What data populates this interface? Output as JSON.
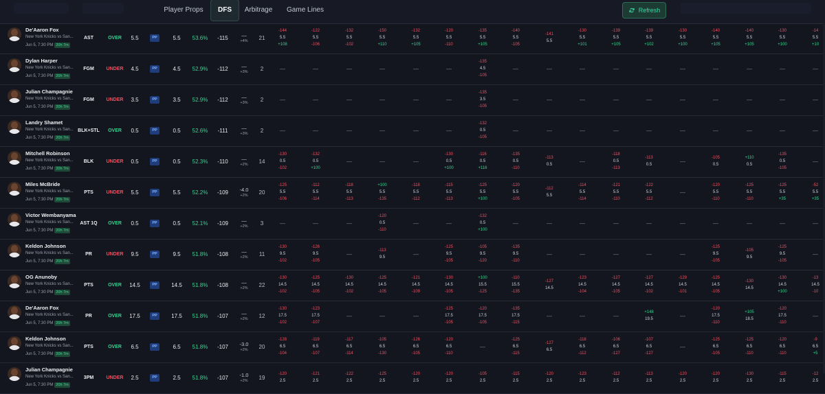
{
  "tabs": [
    {
      "label": "Player Props",
      "active": false
    },
    {
      "label": "DFS",
      "active": true
    },
    {
      "label": "Arbitrage",
      "active": false
    },
    {
      "label": "Game Lines",
      "active": false
    }
  ],
  "refresh_label": "Refresh",
  "rows": [
    {
      "name": "De'Aaron Fox",
      "match": "New York Knicks vs San...",
      "time": "Jun 5, 7:30 PM",
      "countdown": "20h 7m",
      "market": "AST",
      "side": "OVER",
      "line": "5.5",
      "book": "PP",
      "book_line": "5.5",
      "pct": "53.6%",
      "odds": "-115",
      "ev_a": "—",
      "ev_b": "+4%",
      "count": "21",
      "books": [
        [
          "-144",
          "5.5",
          "+108"
        ],
        [
          "-122",
          "5.5",
          "-106"
        ],
        [
          "-132",
          "5.5",
          "-102"
        ],
        [
          "-150",
          "5.5",
          "+110"
        ],
        [
          "-132",
          "5.5",
          "+105"
        ],
        [
          "-120",
          "5.5",
          "-110"
        ],
        [
          "-135",
          "5.5",
          "+105"
        ],
        [
          "-140",
          "5.5",
          "-105"
        ],
        [
          "-141",
          "5.5",
          ""
        ],
        [
          "-130",
          "5.5",
          "+101"
        ],
        [
          "-139",
          "5.5",
          "+105"
        ],
        [
          "-139",
          "5.5",
          "+102"
        ],
        [
          "-130",
          "5.5",
          "+100"
        ],
        [
          "-140",
          "5.5",
          "+105"
        ],
        [
          "-140",
          "5.5",
          "+105"
        ],
        [
          "-130",
          "5.5",
          "+100"
        ],
        [
          "-14",
          "5.5",
          "+10"
        ]
      ]
    },
    {
      "name": "Dylan Harper",
      "match": "New York Knicks vs San...",
      "time": "Jun 5, 7:30 PM",
      "countdown": "20h 7m",
      "market": "FGM",
      "side": "UNDER",
      "line": "4.5",
      "book": "PP",
      "book_line": "4.5",
      "pct": "52.9%",
      "odds": "-112",
      "ev_a": "—",
      "ev_b": "+3%",
      "count": "2",
      "books": [
        [],
        [],
        [],
        [],
        [],
        [],
        [
          "-135",
          "4.5",
          "-105"
        ],
        [],
        [],
        [],
        [],
        [],
        [],
        [],
        [],
        [],
        []
      ]
    },
    {
      "name": "Julian Champagnie",
      "match": "New York Knicks vs San...",
      "time": "Jun 5, 7:30 PM",
      "countdown": "20h 7m",
      "market": "FGM",
      "side": "UNDER",
      "line": "3.5",
      "book": "PP",
      "book_line": "3.5",
      "pct": "52.9%",
      "odds": "-112",
      "ev_a": "—",
      "ev_b": "+3%",
      "count": "2",
      "books": [
        [],
        [],
        [],
        [],
        [],
        [],
        [
          "-135",
          "3.5",
          "-105"
        ],
        [],
        [],
        [],
        [],
        [],
        [],
        [],
        [],
        [],
        []
      ]
    },
    {
      "name": "Landry Shamet",
      "match": "New York Knicks vs San...",
      "time": "Jun 5, 7:30 PM",
      "countdown": "20h 7m",
      "market": "BLK+STL",
      "side": "OVER",
      "line": "0.5",
      "book": "PP",
      "book_line": "0.5",
      "pct": "52.6%",
      "odds": "-111",
      "ev_a": "—",
      "ev_b": "+3%",
      "count": "2",
      "books": [
        [],
        [],
        [],
        [],
        [],
        [],
        [
          "-132",
          "0.5",
          "-105"
        ],
        [],
        [],
        [],
        [],
        [],
        [],
        [],
        [],
        [],
        []
      ]
    },
    {
      "name": "Mitchell Robinson",
      "match": "New York Knicks vs San...",
      "time": "Jun 5, 7:30 PM",
      "countdown": "20h 7m",
      "market": "BLK",
      "side": "UNDER",
      "line": "0.5",
      "book": "PP",
      "book_line": "0.5",
      "pct": "52.3%",
      "odds": "-110",
      "ev_a": "—",
      "ev_b": "+2%",
      "count": "14",
      "books": [
        [
          "-130",
          "0.5",
          "-102"
        ],
        [
          "-132",
          "0.5",
          "+100"
        ],
        [],
        [],
        [],
        [
          "-130",
          "0.5",
          "+100"
        ],
        [
          "-116",
          "0.5",
          "+116"
        ],
        [
          "-135",
          "0.5",
          "-110"
        ],
        [
          "-113",
          "0.5",
          ""
        ],
        [],
        [
          "-118",
          "0.5",
          "-113"
        ],
        [
          "-113",
          "0.5",
          ""
        ],
        [],
        [
          "-105",
          "0.5",
          ""
        ],
        [
          "+110",
          "0.5",
          ""
        ],
        [
          "-135",
          "0.5",
          "-105"
        ],
        []
      ]
    },
    {
      "name": "Miles McBride",
      "match": "New York Knicks vs San...",
      "time": "Jun 5, 7:30 PM",
      "countdown": "20h 7m",
      "market": "PTS",
      "side": "UNDER",
      "line": "5.5",
      "book": "PP",
      "book_line": "5.5",
      "pct": "52.2%",
      "odds": "-109",
      "ev_a": "-4.0",
      "ev_b": "+2%",
      "count": "20",
      "books": [
        [
          "-125",
          "5.5",
          "-106"
        ],
        [
          "-112",
          "5.5",
          "-114"
        ],
        [
          "-118",
          "5.5",
          "-113"
        ],
        [
          "+100",
          "5.5",
          "-135"
        ],
        [
          "-118",
          "5.5",
          "-112"
        ],
        [
          "-115",
          "5.5",
          "-113"
        ],
        [
          "-125",
          "5.5",
          "+100"
        ],
        [
          "-120",
          "5.5",
          "-105"
        ],
        [
          "-112",
          "5.5",
          ""
        ],
        [
          "-114",
          "5.5",
          "-114"
        ],
        [
          "-121",
          "5.5",
          "-110"
        ],
        [
          "-122",
          "5.5",
          "-112"
        ],
        [],
        [
          "-120",
          "5.5",
          "-110"
        ],
        [
          "-125",
          "5.5",
          "-110"
        ],
        [
          "-125",
          "5.5",
          "+35"
        ],
        [
          "-52",
          "5.5",
          "+35"
        ]
      ]
    },
    {
      "name": "Victor Wembanyama",
      "match": "New York Knicks vs San...",
      "time": "Jun 5, 7:30 PM",
      "countdown": "20h 7m",
      "market": "AST 1Q",
      "side": "OVER",
      "line": "0.5",
      "book": "PP",
      "book_line": "0.5",
      "pct": "52.1%",
      "odds": "-109",
      "ev_a": "—",
      "ev_b": "+2%",
      "count": "3",
      "books": [
        [],
        [],
        [],
        [
          "-120",
          "0.5",
          "-110"
        ],
        [],
        [],
        [
          "-132",
          "0.5",
          "+100"
        ],
        [],
        [],
        [],
        [],
        [],
        [],
        [],
        [],
        [],
        []
      ]
    },
    {
      "name": "Keldon Johnson",
      "match": "New York Knicks vs San...",
      "time": "Jun 5, 7:30 PM",
      "countdown": "20h 7m",
      "market": "PR",
      "side": "UNDER",
      "line": "9.5",
      "book": "PP",
      "book_line": "9.5",
      "pct": "51.8%",
      "odds": "-108",
      "ev_a": "—",
      "ev_b": "+2%",
      "count": "11",
      "books": [
        [
          "-130",
          "9.5",
          "-102"
        ],
        [
          "-126",
          "9.5",
          "-105"
        ],
        [],
        [
          "-113",
          "9.5",
          ""
        ],
        [],
        [
          "-125",
          "9.5",
          "-105"
        ],
        [
          "-105",
          "9.5",
          "-120"
        ],
        [
          "-135",
          "9.5",
          "-110"
        ],
        [],
        [],
        [],
        [],
        [],
        [
          "-125",
          "9.5",
          "-105"
        ],
        [
          "-105",
          "9.5",
          ""
        ],
        [
          "-125",
          "9.5",
          "-105"
        ],
        []
      ]
    },
    {
      "name": "OG Anunoby",
      "match": "New York Knicks vs San...",
      "time": "Jun 5, 7:30 PM",
      "countdown": "20h 7m",
      "market": "PTS",
      "side": "OVER",
      "line": "14.5",
      "book": "PP",
      "book_line": "14.5",
      "pct": "51.8%",
      "odds": "-108",
      "ev_a": "—",
      "ev_b": "+2%",
      "count": "22",
      "books": [
        [
          "-130",
          "14.5",
          "-102"
        ],
        [
          "-125",
          "14.5",
          "-105"
        ],
        [
          "-130",
          "14.5",
          "-102"
        ],
        [
          "-125",
          "14.5",
          "-105"
        ],
        [
          "-121",
          "14.5",
          "-109"
        ],
        [
          "-130",
          "14.5",
          "-105"
        ],
        [
          "+100",
          "15.5",
          "-125"
        ],
        [
          "-110",
          "15.5",
          "-135"
        ],
        [
          "-127",
          "14.5",
          ""
        ],
        [
          "-123",
          "14.5",
          "-104"
        ],
        [
          "-127",
          "14.5",
          "-105"
        ],
        [
          "-127",
          "14.5",
          "-102"
        ],
        [
          "-129",
          "14.5",
          "-101"
        ],
        [
          "-125",
          "14.5",
          "-105"
        ],
        [
          "-130",
          "14.5",
          ""
        ],
        [
          "-130",
          "14.5",
          "+100"
        ],
        [
          "-13",
          "14.5",
          "-10"
        ]
      ]
    },
    {
      "name": "De'Aaron Fox",
      "match": "New York Knicks vs San...",
      "time": "Jun 5, 7:30 PM",
      "countdown": "20h 7m",
      "market": "PR",
      "side": "OVER",
      "line": "17.5",
      "book": "PP",
      "book_line": "17.5",
      "pct": "51.8%",
      "odds": "-107",
      "ev_a": "—",
      "ev_b": "+2%",
      "count": "12",
      "books": [
        [
          "-130",
          "17.5",
          "-102"
        ],
        [
          "-123",
          "17.5",
          "-107"
        ],
        [],
        [],
        [],
        [
          "-125",
          "17.5",
          "-105"
        ],
        [
          "-120",
          "17.5",
          "-105"
        ],
        [
          "-135",
          "17.5",
          "-115"
        ],
        [],
        [],
        [],
        [
          "+148",
          "19.5",
          ""
        ],
        [],
        [
          "-120",
          "17.5",
          "-110"
        ],
        [
          "+105",
          "18.5",
          ""
        ],
        [
          "-120",
          "17.5",
          "-110"
        ],
        []
      ]
    },
    {
      "name": "Keldon Johnson",
      "match": "New York Knicks vs San...",
      "time": "Jun 5, 7:30 PM",
      "countdown": "20h 7m",
      "market": "PTS",
      "side": "OVER",
      "line": "6.5",
      "book": "PP",
      "book_line": "6.5",
      "pct": "51.8%",
      "odds": "-107",
      "ev_a": "-3.0",
      "ev_b": "+2%",
      "count": "20",
      "books": [
        [
          "-128",
          "6.5",
          "-104"
        ],
        [
          "-119",
          "6.5",
          "-107"
        ],
        [
          "-117",
          "6.5",
          "-114"
        ],
        [
          "-105",
          "6.5",
          "-130"
        ],
        [
          "-126",
          "6.5",
          "-105"
        ],
        [
          "-120",
          "6.5",
          "-110"
        ],
        [],
        [
          "-125",
          "6.5",
          "-115"
        ],
        [
          "-127",
          "6.5",
          ""
        ],
        [
          "-118",
          "6.5",
          "-112"
        ],
        [
          "-106",
          "6.5",
          "-127"
        ],
        [
          "-107",
          "6.5",
          "-127"
        ],
        [],
        [
          "-125",
          "6.5",
          "-105"
        ],
        [
          "-125",
          "6.5",
          "-110"
        ],
        [
          "-120",
          "6.5",
          "-110"
        ],
        [
          "-9",
          "6.5",
          "+5"
        ]
      ]
    },
    {
      "name": "Julian Champagnie",
      "match": "New York Knicks vs San...",
      "time": "Jun 5, 7:30 PM",
      "countdown": "20h 7m",
      "market": "3PM",
      "side": "UNDER",
      "line": "2.5",
      "book": "PP",
      "book_line": "2.5",
      "pct": "51.8%",
      "odds": "-107",
      "ev_a": "-1.0",
      "ev_b": "+2%",
      "count": "19",
      "books": [
        [
          "-120",
          "2.5",
          ""
        ],
        [
          "-121",
          "2.5",
          ""
        ],
        [
          "-122",
          "2.5",
          ""
        ],
        [
          "-125",
          "2.5",
          ""
        ],
        [
          "-120",
          "2.5",
          ""
        ],
        [
          "-120",
          "2.5",
          ""
        ],
        [
          "-105",
          "2.5",
          ""
        ],
        [
          "-115",
          "2.5",
          ""
        ],
        [
          "-120",
          "2.5",
          ""
        ],
        [
          "-123",
          "2.5",
          ""
        ],
        [
          "-112",
          "2.5",
          ""
        ],
        [
          "-113",
          "2.5",
          ""
        ],
        [
          "-120",
          "2.5",
          ""
        ],
        [
          "-120",
          "2.5",
          ""
        ],
        [
          "-130",
          "2.5",
          ""
        ],
        [
          "-115",
          "2.5",
          ""
        ],
        [
          "-12",
          "2.5",
          ""
        ]
      ]
    }
  ]
}
